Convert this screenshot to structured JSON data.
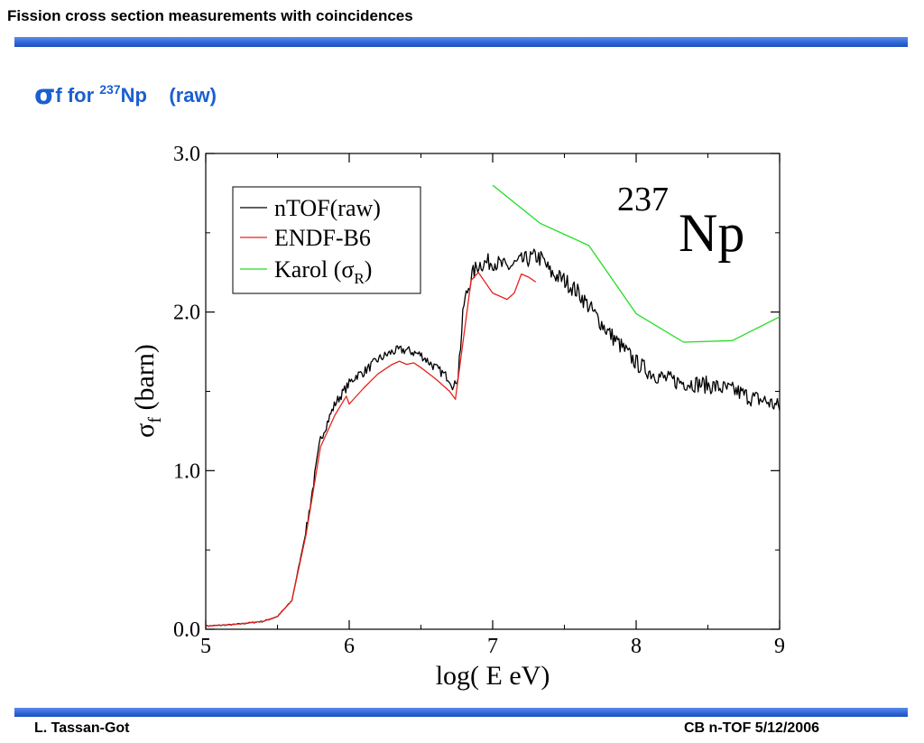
{
  "header": {
    "title": "Fission cross section measurements with coincidences"
  },
  "slide": {
    "sigma": "σ",
    "title_rest": "f  for ",
    "isotope_mass": "237",
    "isotope_symbol": "Np",
    "title_suffix": "    (raw)"
  },
  "footer": {
    "author": "L. Tassan-Got",
    "event": "CB n-TOF 5/12/2006"
  },
  "colors": {
    "accent": "#1a5fd1",
    "bar": "#2f64d6",
    "ntof": "#000000",
    "endf": "#e8231d",
    "karol": "#22dd22"
  },
  "chart_data": {
    "type": "line",
    "xlabel": "log( E eV)",
    "ylabel_symbol": "σ",
    "ylabel_sub": "f",
    "ylabel_text": " (barn)",
    "xlim": [
      5,
      9
    ],
    "ylim": [
      0,
      3
    ],
    "xticks": [
      5,
      6,
      7,
      8,
      9
    ],
    "yticks": [
      0,
      1,
      2,
      3
    ],
    "ytick_labels": [
      "0.0",
      "1.0",
      "2.0",
      "3.0"
    ],
    "minor_y": [
      0.5,
      1.5,
      2.5
    ],
    "minor_x": [
      5.5,
      6.5,
      7.5,
      8.5
    ],
    "grid": false,
    "legend_position": "top-left",
    "annotation": {
      "mass": "237",
      "symbol": "Np"
    },
    "series": [
      {
        "name": "nTOF(raw)",
        "noisy": true,
        "x": [
          5.0,
          5.2,
          5.4,
          5.5,
          5.6,
          5.7,
          5.8,
          5.9,
          6.0,
          6.05,
          6.1,
          6.2,
          6.3,
          6.35,
          6.4,
          6.5,
          6.6,
          6.7,
          6.73,
          6.76,
          6.8,
          6.85,
          6.9,
          7.0,
          7.1,
          7.2,
          7.3,
          7.35,
          7.4,
          7.5,
          7.6,
          7.7,
          7.8,
          7.9,
          8.0,
          8.1,
          8.2,
          8.3,
          8.4,
          8.5,
          8.6,
          8.7,
          8.8,
          8.9,
          9.0
        ],
        "y": [
          0.02,
          0.03,
          0.05,
          0.08,
          0.18,
          0.62,
          1.2,
          1.42,
          1.55,
          1.6,
          1.62,
          1.7,
          1.75,
          1.76,
          1.76,
          1.73,
          1.65,
          1.58,
          1.52,
          1.62,
          2.05,
          2.22,
          2.3,
          2.32,
          2.28,
          2.32,
          2.35,
          2.33,
          2.25,
          2.2,
          2.12,
          2.0,
          1.88,
          1.78,
          1.68,
          1.62,
          1.58,
          1.56,
          1.55,
          1.54,
          1.52,
          1.5,
          1.46,
          1.44,
          1.4
        ]
      },
      {
        "name": "ENDF-B6",
        "noisy": false,
        "x": [
          5.0,
          5.2,
          5.4,
          5.5,
          5.6,
          5.7,
          5.8,
          5.9,
          5.98,
          6.0,
          6.02,
          6.1,
          6.2,
          6.3,
          6.35,
          6.4,
          6.45,
          6.5,
          6.6,
          6.7,
          6.74,
          6.78,
          6.85,
          6.9,
          7.0,
          7.1,
          7.15,
          7.2,
          7.25,
          7.3
        ],
        "y": [
          0.02,
          0.03,
          0.05,
          0.08,
          0.18,
          0.6,
          1.15,
          1.35,
          1.47,
          1.42,
          1.44,
          1.52,
          1.61,
          1.67,
          1.69,
          1.67,
          1.68,
          1.65,
          1.58,
          1.5,
          1.45,
          1.72,
          2.2,
          2.25,
          2.12,
          2.08,
          2.12,
          2.24,
          2.22,
          2.19
        ]
      },
      {
        "name": "Karol (σR)",
        "name_base": "Karol (σ",
        "name_sub": "R",
        "name_end": ")",
        "noisy": false,
        "x": [
          7.0,
          7.33,
          7.67,
          8.0,
          8.33,
          8.67,
          9.0
        ],
        "y": [
          2.8,
          2.56,
          2.42,
          1.99,
          1.81,
          1.82,
          1.97
        ]
      }
    ]
  }
}
